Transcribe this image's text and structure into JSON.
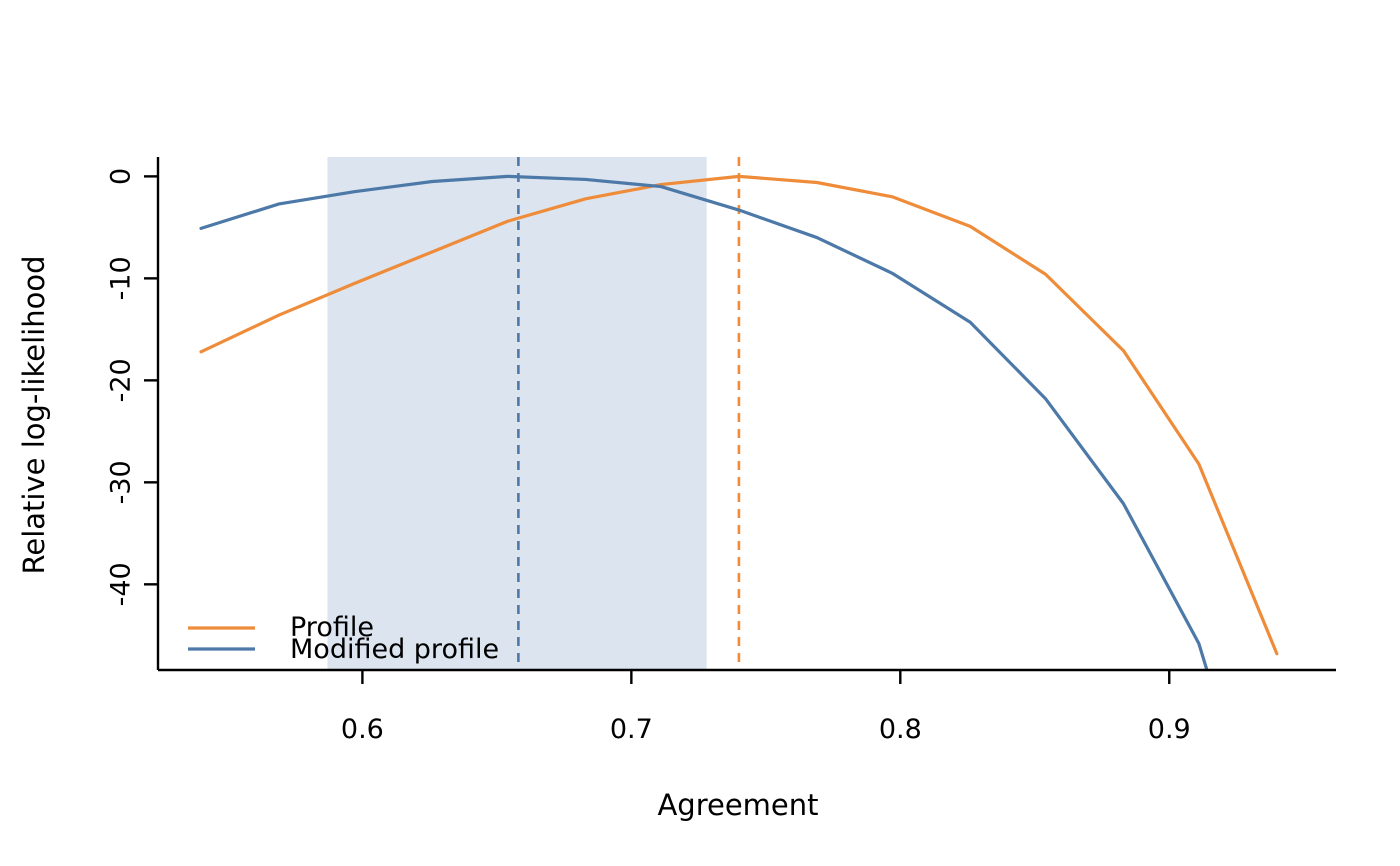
{
  "figure": {
    "background": "#ffffff",
    "text_color": "#000000",
    "axis_color": "#000000"
  },
  "chart_data": {
    "type": "line",
    "title": "",
    "xlabel": "Agreement",
    "ylabel": "Relative log-likelihood",
    "xlim": [
      0.524,
      0.962
    ],
    "ylim": [
      -48.4,
      1.9
    ],
    "xticks": [
      0.6,
      0.7,
      0.8,
      0.9
    ],
    "xtick_labels": [
      "0.6",
      "0.7",
      "0.8",
      "0.9"
    ],
    "yticks": [
      0,
      -10,
      -20,
      -30,
      -40
    ],
    "ytick_labels": [
      "0",
      "-10",
      "-20",
      "-30",
      "-40"
    ],
    "grid": false,
    "legend_position": "bottom-left-inside",
    "series": [
      {
        "name": "Profile",
        "color": "#ee8c3a",
        "x": [
          0.54,
          0.569,
          0.597,
          0.626,
          0.654,
          0.683,
          0.711,
          0.74,
          0.769,
          0.797,
          0.826,
          0.854,
          0.883,
          0.911,
          0.94
        ],
        "y": [
          -17.2,
          -13.6,
          -10.5,
          -7.4,
          -4.4,
          -2.2,
          -0.8,
          0.0,
          -0.6,
          -2.0,
          -4.9,
          -9.6,
          -17.1,
          -28.2,
          -46.8
        ]
      },
      {
        "name": "Modified profile",
        "color": "#4d79a8",
        "x": [
          0.54,
          0.569,
          0.597,
          0.626,
          0.654,
          0.683,
          0.711,
          0.74,
          0.769,
          0.797,
          0.826,
          0.854,
          0.883,
          0.911,
          0.914
        ],
        "y": [
          -5.1,
          -2.7,
          -1.5,
          -0.5,
          0.0,
          -0.3,
          -1.0,
          -3.3,
          -6.0,
          -9.5,
          -14.3,
          -21.8,
          -32.1,
          -45.8,
          -48.4
        ]
      }
    ],
    "shaded_region": {
      "x_start": 0.587,
      "x_end": 0.728,
      "fill": "#dce4ef"
    },
    "vlines": [
      {
        "x": 0.658,
        "color": "#4d79a8",
        "style": "dashed"
      },
      {
        "x": 0.74,
        "color": "#ee8c3a",
        "style": "dashed"
      }
    ]
  }
}
